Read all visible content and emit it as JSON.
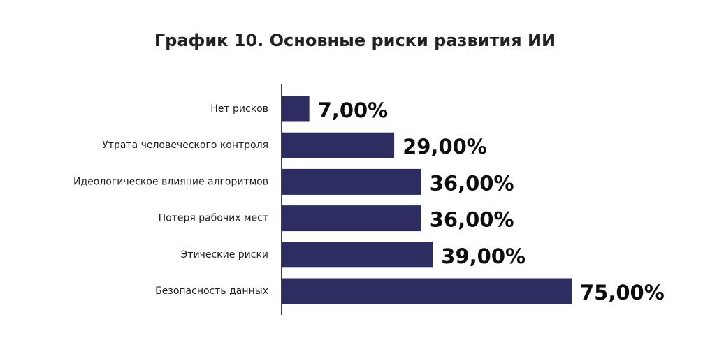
{
  "chart_data": {
    "type": "bar",
    "orientation": "horizontal",
    "title": "График 10. Основные риски развития ИИ",
    "categories": [
      "Нет рисков",
      "Утрата человеческого контроля",
      "Идеологическое влияние алгоритмов",
      "Потеря рабочих мест",
      "Этические риски",
      "Безопасность данных"
    ],
    "values": [
      7,
      29,
      36,
      36,
      39,
      75
    ],
    "value_labels": [
      "7,00%",
      "29,00%",
      "36,00%",
      "36,00%",
      "39,00%",
      "75,00%"
    ],
    "xlim": [
      0,
      75
    ],
    "grid": false,
    "legend": "none",
    "bar_color": "#2e2d62"
  }
}
